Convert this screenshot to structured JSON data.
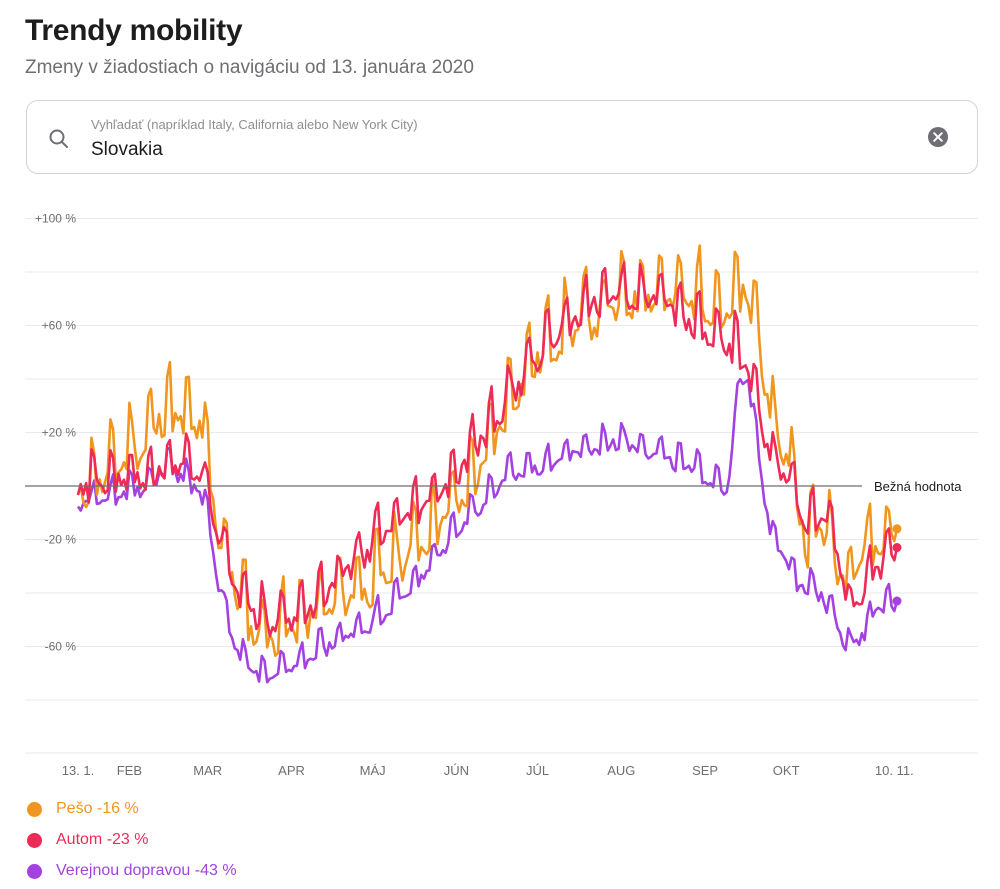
{
  "header": {
    "title": "Trendy mobility",
    "subtitle": "Zmeny v žiadostiach o navigáciu od 13. januára 2020"
  },
  "search": {
    "placeholder": "Vyhľadať (napríklad Italy, California alebo New York City)",
    "value": "Slovakia"
  },
  "colors": {
    "walking": "#f0961e",
    "driving": "#ee2b57",
    "transit": "#a342e0",
    "baseline": "#6e6e73",
    "grid": "#e8e8ed"
  },
  "chart_data": {
    "type": "line",
    "title": "Trendy mobility",
    "ylim": [
      -100,
      100
    ],
    "y_ticks": [
      {
        "value": 100,
        "label": "+100 %"
      },
      {
        "value": 80,
        "label": ""
      },
      {
        "value": 60,
        "label": "+60 %"
      },
      {
        "value": 40,
        "label": ""
      },
      {
        "value": 20,
        "label": "+20 %"
      },
      {
        "value": -20,
        "label": "-20 %"
      },
      {
        "value": -40,
        "label": ""
      },
      {
        "value": -60,
        "label": "-60 %"
      },
      {
        "value": -80,
        "label": ""
      }
    ],
    "baseline": {
      "value": 0,
      "label": "Bežná hodnota"
    },
    "xlim": [
      0,
      303
    ],
    "x_ticks": [
      {
        "day": 0,
        "label": "13. 1."
      },
      {
        "day": 19,
        "label": "FEB"
      },
      {
        "day": 48,
        "label": "MAR"
      },
      {
        "day": 79,
        "label": "APR"
      },
      {
        "day": 109,
        "label": "MÁJ"
      },
      {
        "day": 140,
        "label": "JÚN"
      },
      {
        "day": 170,
        "label": "JÚL"
      },
      {
        "day": 201,
        "label": "AUG"
      },
      {
        "day": 232,
        "label": "SEP"
      },
      {
        "day": 262,
        "label": "OKT"
      },
      {
        "day": 302,
        "label": "10. 11."
      }
    ],
    "series": [
      {
        "name": "Pešo",
        "value_label": "-16 %",
        "color_key": "walking",
        "anchors": [
          [
            0,
            0
          ],
          [
            10,
            5
          ],
          [
            19,
            15
          ],
          [
            25,
            18
          ],
          [
            30,
            28
          ],
          [
            35,
            30
          ],
          [
            40,
            25
          ],
          [
            45,
            25
          ],
          [
            48,
            10
          ],
          [
            52,
            -15
          ],
          [
            58,
            -35
          ],
          [
            64,
            -50
          ],
          [
            70,
            -55
          ],
          [
            79,
            -50
          ],
          [
            90,
            -45
          ],
          [
            100,
            -38
          ],
          [
            109,
            -35
          ],
          [
            120,
            -25
          ],
          [
            130,
            -15
          ],
          [
            140,
            -5
          ],
          [
            150,
            10
          ],
          [
            160,
            35
          ],
          [
            170,
            50
          ],
          [
            180,
            60
          ],
          [
            190,
            65
          ],
          [
            201,
            70
          ],
          [
            210,
            75
          ],
          [
            220,
            72
          ],
          [
            232,
            72
          ],
          [
            240,
            65
          ],
          [
            246,
            75
          ],
          [
            252,
            60
          ],
          [
            256,
            25
          ],
          [
            262,
            15
          ],
          [
            266,
            -2
          ],
          [
            270,
            -20
          ],
          [
            275,
            -10
          ],
          [
            280,
            -25
          ],
          [
            285,
            -32
          ],
          [
            290,
            -22
          ],
          [
            296,
            -20
          ],
          [
            302,
            -16
          ]
        ],
        "amplitude": 14
      },
      {
        "name": "Autom",
        "value_label": "-23 %",
        "color_key": "driving",
        "anchors": [
          [
            0,
            0
          ],
          [
            10,
            3
          ],
          [
            19,
            5
          ],
          [
            25,
            5
          ],
          [
            30,
            8
          ],
          [
            35,
            10
          ],
          [
            40,
            8
          ],
          [
            45,
            8
          ],
          [
            48,
            0
          ],
          [
            52,
            -15
          ],
          [
            58,
            -35
          ],
          [
            64,
            -45
          ],
          [
            70,
            -50
          ],
          [
            79,
            -48
          ],
          [
            90,
            -40
          ],
          [
            100,
            -30
          ],
          [
            109,
            -20
          ],
          [
            120,
            -12
          ],
          [
            130,
            -5
          ],
          [
            140,
            5
          ],
          [
            150,
            20
          ],
          [
            160,
            35
          ],
          [
            170,
            50
          ],
          [
            180,
            62
          ],
          [
            190,
            70
          ],
          [
            201,
            72
          ],
          [
            210,
            72
          ],
          [
            220,
            68
          ],
          [
            232,
            60
          ],
          [
            240,
            55
          ],
          [
            246,
            50
          ],
          [
            252,
            30
          ],
          [
            256,
            12
          ],
          [
            262,
            5
          ],
          [
            266,
            -5
          ],
          [
            270,
            -12
          ],
          [
            275,
            -10
          ],
          [
            280,
            -18
          ],
          [
            285,
            -45
          ],
          [
            290,
            -38
          ],
          [
            296,
            -28
          ],
          [
            302,
            -23
          ]
        ],
        "amplitude": 10
      },
      {
        "name": "Verejnou dopravou",
        "value_label": "-43 %",
        "color_key": "transit",
        "anchors": [
          [
            0,
            -5
          ],
          [
            10,
            -5
          ],
          [
            19,
            0
          ],
          [
            25,
            0
          ],
          [
            30,
            5
          ],
          [
            35,
            8
          ],
          [
            40,
            3
          ],
          [
            45,
            0
          ],
          [
            48,
            -10
          ],
          [
            52,
            -35
          ],
          [
            58,
            -60
          ],
          [
            64,
            -68
          ],
          [
            70,
            -70
          ],
          [
            79,
            -68
          ],
          [
            90,
            -60
          ],
          [
            100,
            -55
          ],
          [
            109,
            -50
          ],
          [
            120,
            -40
          ],
          [
            130,
            -30
          ],
          [
            140,
            -15
          ],
          [
            150,
            -5
          ],
          [
            160,
            5
          ],
          [
            170,
            8
          ],
          [
            180,
            12
          ],
          [
            190,
            15
          ],
          [
            201,
            18
          ],
          [
            210,
            15
          ],
          [
            220,
            10
          ],
          [
            232,
            5
          ],
          [
            240,
            0
          ],
          [
            245,
            40
          ],
          [
            248,
            40
          ],
          [
            252,
            10
          ],
          [
            256,
            -15
          ],
          [
            262,
            -25
          ],
          [
            266,
            -35
          ],
          [
            270,
            -38
          ],
          [
            275,
            -40
          ],
          [
            280,
            -48
          ],
          [
            285,
            -60
          ],
          [
            290,
            -55
          ],
          [
            296,
            -45
          ],
          [
            302,
            -43
          ]
        ],
        "amplitude": 6
      }
    ]
  }
}
